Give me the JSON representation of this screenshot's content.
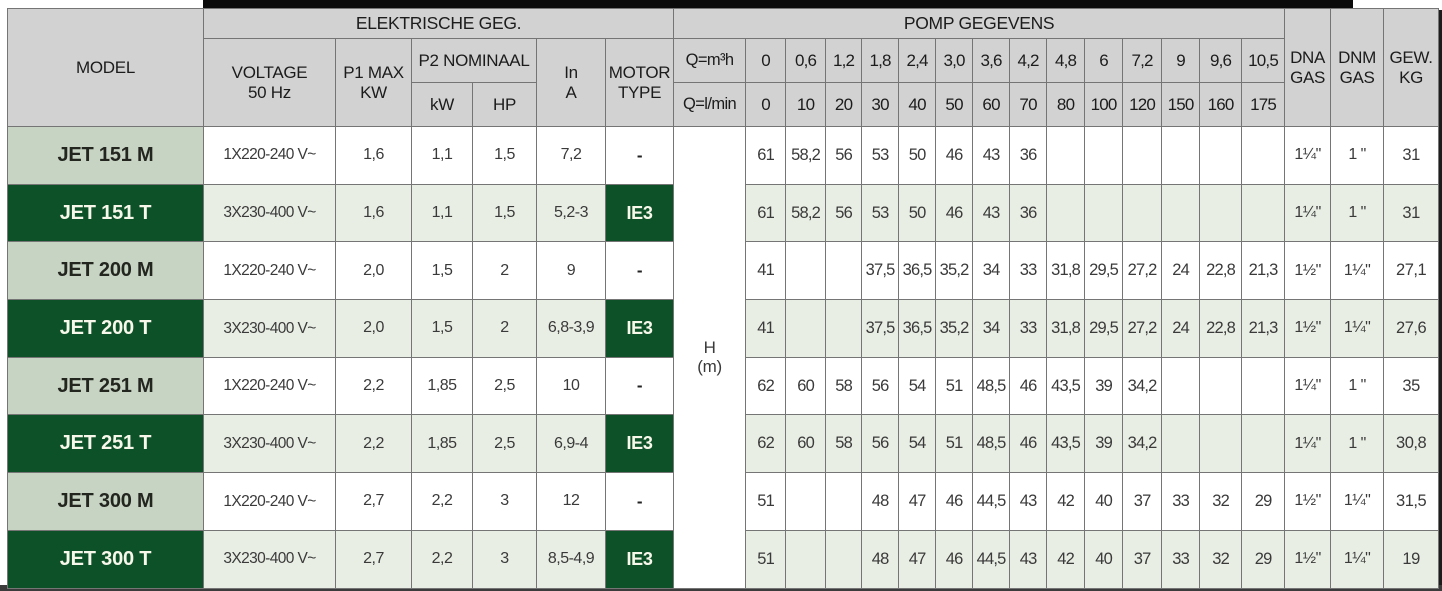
{
  "table": {
    "header": {
      "model": "MODEL",
      "elektrische_geg": "ELEKTRISCHE GEG.",
      "pomp_gegevens": "POMP GEGEVENS",
      "voltage": "VOLTAGE\n50 Hz",
      "p1_max": "P1 MAX\nKW",
      "p2_nominaal": "P2 NOMINAAL",
      "p2_kw": "kW",
      "p2_hp": "HP",
      "in_a": "In\nA",
      "motor_type": "MOTOR\nTYPE",
      "q_m3h_label": "Q=m³h",
      "q_lmin_label": "Q=l/min",
      "dna_gas": "DNA\nGAS",
      "dnm_gas": "DNM\nGAS",
      "gew_kg": "GEW.\nKG"
    },
    "h_axis_label": "H\n(m)",
    "q_m3h_values": [
      "0",
      "0,6",
      "1,2",
      "1,8",
      "2,4",
      "3,0",
      "3,6",
      "4,2",
      "4,8",
      "6",
      "7,2",
      "9",
      "9,6",
      "10,5"
    ],
    "q_lmin_values": [
      "0",
      "10",
      "20",
      "30",
      "40",
      "50",
      "60",
      "70",
      "80",
      "100",
      "120",
      "150",
      "160",
      "175"
    ],
    "rows": [
      {
        "model": "JET 151 M",
        "variant": "M",
        "voltage": "1X220-240 V~",
        "p1_max": "1,6",
        "p2_kw": "1,1",
        "p2_hp": "1,5",
        "in_a": "7,2",
        "motor": "-",
        "h_values": [
          "61",
          "58,2",
          "56",
          "53",
          "50",
          "46",
          "43",
          "36",
          "",
          "",
          "",
          "",
          "",
          ""
        ],
        "dna": "1¼\"",
        "dnm": "1 \"",
        "gew": "31"
      },
      {
        "model": "JET 151 T",
        "variant": "T",
        "voltage": "3X230-400 V~",
        "p1_max": "1,6",
        "p2_kw": "1,1",
        "p2_hp": "1,5",
        "in_a": "5,2-3",
        "motor": "IE3",
        "h_values": [
          "61",
          "58,2",
          "56",
          "53",
          "50",
          "46",
          "43",
          "36",
          "",
          "",
          "",
          "",
          "",
          ""
        ],
        "dna": "1¼\"",
        "dnm": "1 \"",
        "gew": "31"
      },
      {
        "model": "JET 200 M",
        "variant": "M",
        "voltage": "1X220-240 V~",
        "p1_max": "2,0",
        "p2_kw": "1,5",
        "p2_hp": "2",
        "in_a": "9",
        "motor": "-",
        "h_values": [
          "41",
          "",
          "",
          "37,5",
          "36,5",
          "35,2",
          "34",
          "33",
          "31,8",
          "29,5",
          "27,2",
          "24",
          "22,8",
          "21,3"
        ],
        "dna": "1½\"",
        "dnm": "1¼\"",
        "gew": "27,1"
      },
      {
        "model": "JET 200 T",
        "variant": "T",
        "voltage": "3X230-400 V~",
        "p1_max": "2,0",
        "p2_kw": "1,5",
        "p2_hp": "2",
        "in_a": "6,8-3,9",
        "motor": "IE3",
        "h_values": [
          "41",
          "",
          "",
          "37,5",
          "36,5",
          "35,2",
          "34",
          "33",
          "31,8",
          "29,5",
          "27,2",
          "24",
          "22,8",
          "21,3"
        ],
        "dna": "1½\"",
        "dnm": "1¼\"",
        "gew": "27,6"
      },
      {
        "model": "JET 251 M",
        "variant": "M",
        "voltage": "1X220-240 V~",
        "p1_max": "2,2",
        "p2_kw": "1,85",
        "p2_hp": "2,5",
        "in_a": "10",
        "motor": "-",
        "h_values": [
          "62",
          "60",
          "58",
          "56",
          "54",
          "51",
          "48,5",
          "46",
          "43,5",
          "39",
          "34,2",
          "",
          "",
          ""
        ],
        "dna": "1¼\"",
        "dnm": "1 \"",
        "gew": "35"
      },
      {
        "model": "JET 251 T",
        "variant": "T",
        "voltage": "3X230-400 V~",
        "p1_max": "2,2",
        "p2_kw": "1,85",
        "p2_hp": "2,5",
        "in_a": "6,9-4",
        "motor": "IE3",
        "h_values": [
          "62",
          "60",
          "58",
          "56",
          "54",
          "51",
          "48,5",
          "46",
          "43,5",
          "39",
          "34,2",
          "",
          "",
          ""
        ],
        "dna": "1¼\"",
        "dnm": "1 \"",
        "gew": "30,8"
      },
      {
        "model": "JET 300 M",
        "variant": "M",
        "voltage": "1X220-240 V~",
        "p1_max": "2,7",
        "p2_kw": "2,2",
        "p2_hp": "3",
        "in_a": "12",
        "motor": "-",
        "h_values": [
          "51",
          "",
          "",
          "48",
          "47",
          "46",
          "44,5",
          "43",
          "42",
          "40",
          "37",
          "33",
          "32",
          "29"
        ],
        "dna": "1½\"",
        "dnm": "1¼\"",
        "gew": "31,5"
      },
      {
        "model": "JET 300 T",
        "variant": "T",
        "voltage": "3X230-400 V~",
        "p1_max": "2,7",
        "p2_kw": "2,2",
        "p2_hp": "3",
        "in_a": "8,5-4,9",
        "motor": "IE3",
        "h_values": [
          "51",
          "",
          "",
          "48",
          "47",
          "46",
          "44,5",
          "43",
          "42",
          "40",
          "37",
          "33",
          "32",
          "29"
        ],
        "dna": "1½\"",
        "dnm": "1¼\"",
        "gew": "19"
      }
    ]
  },
  "colors": {
    "dark_green": "#0d5128",
    "sage_green": "#c7d3c3",
    "row_tint": "#e8eee4",
    "header_gray": "#d2d2d2"
  }
}
